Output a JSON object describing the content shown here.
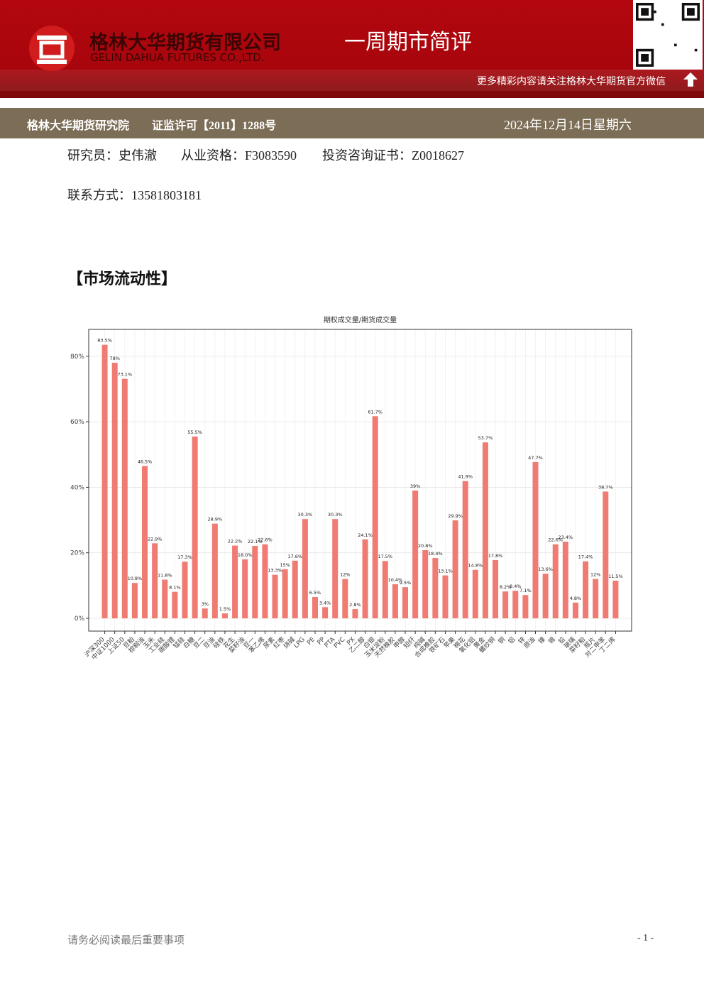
{
  "header": {
    "company_cn": "格林大华期货有限公司",
    "company_en": "GELIN DAHUA FUTURES CO.,LTD.",
    "title": "一周期市简评",
    "wechat_note": "更多精彩内容请关注格林大华期货官方微信"
  },
  "info_bar": {
    "institute": "格林大华期货研究院",
    "license": "证监许可【2011】1288号",
    "date": "2024年12月14日星期六"
  },
  "researcher": {
    "name": "研究员：史伟澈",
    "qualification": "从业资格：F3083590",
    "certificate": "投资咨询证书：Z0018627",
    "contact": "联系方式：13581803181"
  },
  "section_title": "【市场流动性】",
  "chart_data": {
    "type": "bar",
    "title": "期权成交量/期货成交量",
    "color": "#ef7b72",
    "grid": true,
    "categories": [
      "沪深300",
      "中证1000",
      "上证50",
      "豆粕",
      "棕榈油",
      "玉米",
      "工业硅",
      "碳酸锂",
      "锰硅",
      "白糖",
      "豆二",
      "豆油",
      "硅铁",
      "花生",
      "菜籽油",
      "豆一",
      "苯乙烯",
      "尿素",
      "红枣",
      "烧碱",
      "LPG",
      "PE",
      "PP",
      "PTA",
      "PVC",
      "PX",
      "乙二醇",
      "白银",
      "玉米淀粉",
      "天然橡胶",
      "甲醇",
      "短纤",
      "纯碱",
      "合成橡胶",
      "铁矿石",
      "苹果",
      "棉花",
      "氧化铝",
      "黄金",
      "螺纹钢",
      "铜",
      "铝",
      "锌",
      "原油",
      "镍",
      "锡",
      "铅",
      "玻璃",
      "菜籽粕",
      "瓶片",
      "对二甲苯",
      "丁二烯"
    ],
    "values": [
      83.5,
      78,
      73.1,
      10.8,
      46.5,
      22.9,
      11.8,
      8.1,
      17.3,
      55.5,
      3,
      28.9,
      1.5,
      22.2,
      18.0,
      22.1,
      22.6,
      13.3,
      15,
      17.6,
      30.3,
      6.5,
      3.4,
      30.3,
      12,
      2.8,
      24.1,
      61.7,
      17.5,
      10.4,
      9.5,
      39,
      20.8,
      18.4,
      13.1,
      29.9,
      41.9,
      14.8,
      53.7,
      17.8,
      8.2,
      8.4,
      7.1,
      47.7,
      13.6,
      22.6,
      23.4,
      4.8,
      17.4,
      12,
      38.7,
      11.5
    ],
    "value_labels": [
      "83.5%",
      "78%",
      "73.1%",
      "10.8%",
      "46.5%",
      "22.9%",
      "11.8%",
      "8.1%",
      "17.3%",
      "55.5%",
      "3%",
      "28.9%",
      "1.5%",
      "22.2%",
      "18.0%",
      "22.1%",
      "22.6%",
      "13.3%",
      "15%",
      "17.6%",
      "30.3%",
      "6.5%",
      "3.4%",
      "30.3%",
      "12%",
      "2.8%",
      "24.1%",
      "61.7%",
      "17.5%",
      "10.4%",
      "9.5%",
      "39%",
      "20.8%",
      "18.4%",
      "13.1%",
      "29.9%",
      "41.9%",
      "14.8%",
      "53.7%",
      "17.8%",
      "8.2%",
      "8.4%",
      "7.1%",
      "47.7%",
      "13.6%",
      "22.6%",
      "23.4%",
      "4.8%",
      "17.4%",
      "12%",
      "38.7%",
      "11.5%"
    ],
    "ylim": [
      -3.9,
      88.2
    ],
    "yticks": [
      {
        "value": 0,
        "label": "0%"
      },
      {
        "value": 20,
        "label": "20%"
      },
      {
        "value": 40,
        "label": "40%"
      },
      {
        "value": 60,
        "label": "60%"
      },
      {
        "value": 80,
        "label": "80%"
      }
    ]
  },
  "footer": {
    "note": "请务必阅读最后重要事项",
    "page": "- 1 -"
  }
}
